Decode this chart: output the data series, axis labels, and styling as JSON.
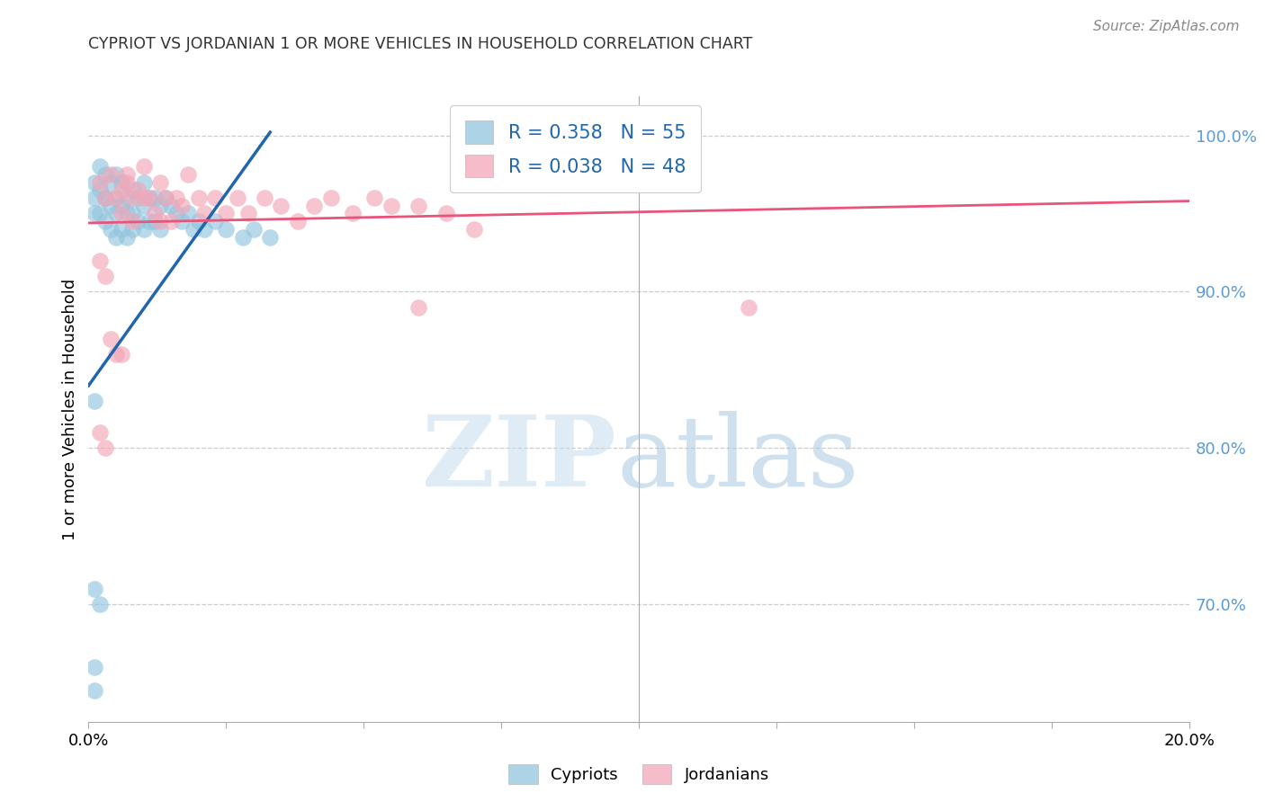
{
  "title": "CYPRIOT VS JORDANIAN 1 OR MORE VEHICLES IN HOUSEHOLD CORRELATION CHART",
  "source": "Source: ZipAtlas.com",
  "ylabel": "1 or more Vehicles in Household",
  "xmin": 0.0,
  "xmax": 0.2,
  "ymin": 0.625,
  "ymax": 1.025,
  "yticks": [
    0.7,
    0.8,
    0.9,
    1.0
  ],
  "ytick_labels": [
    "70.0%",
    "80.0%",
    "90.0%",
    "100.0%"
  ],
  "xticks": [
    0.0,
    0.025,
    0.05,
    0.075,
    0.1,
    0.125,
    0.15,
    0.175,
    0.2
  ],
  "blue_color": "#92c5de",
  "pink_color": "#f4a6b8",
  "blue_line_color": "#2166ac",
  "pink_line_color": "#e8547a",
  "R_blue": 0.358,
  "N_blue": 55,
  "R_pink": 0.038,
  "N_pink": 48,
  "legend_label_blue": "Cypriots",
  "legend_label_pink": "Jordanians",
  "blue_scatter_x": [
    0.001,
    0.001,
    0.002,
    0.002,
    0.002,
    0.003,
    0.003,
    0.003,
    0.004,
    0.004,
    0.004,
    0.005,
    0.005,
    0.005,
    0.005,
    0.006,
    0.006,
    0.006,
    0.007,
    0.007,
    0.007,
    0.008,
    0.008,
    0.008,
    0.009,
    0.009,
    0.01,
    0.01,
    0.01,
    0.011,
    0.011,
    0.012,
    0.012,
    0.013,
    0.013,
    0.014,
    0.015,
    0.016,
    0.017,
    0.018,
    0.019,
    0.02,
    0.021,
    0.023,
    0.025,
    0.028,
    0.03,
    0.033,
    0.001,
    0.001,
    0.001,
    0.002,
    0.003,
    0.001,
    0.001
  ],
  "blue_scatter_y": [
    0.97,
    0.96,
    0.98,
    0.965,
    0.95,
    0.975,
    0.96,
    0.945,
    0.97,
    0.955,
    0.94,
    0.975,
    0.96,
    0.95,
    0.935,
    0.97,
    0.955,
    0.94,
    0.96,
    0.95,
    0.935,
    0.965,
    0.95,
    0.94,
    0.96,
    0.945,
    0.97,
    0.955,
    0.94,
    0.96,
    0.945,
    0.96,
    0.945,
    0.955,
    0.94,
    0.96,
    0.955,
    0.95,
    0.945,
    0.95,
    0.94,
    0.945,
    0.94,
    0.945,
    0.94,
    0.935,
    0.94,
    0.935,
    0.83,
    0.95,
    0.71,
    0.7,
    0.96,
    0.66,
    0.645
  ],
  "pink_scatter_x": [
    0.002,
    0.003,
    0.004,
    0.005,
    0.006,
    0.006,
    0.007,
    0.008,
    0.008,
    0.009,
    0.01,
    0.01,
    0.011,
    0.012,
    0.013,
    0.013,
    0.014,
    0.015,
    0.016,
    0.017,
    0.018,
    0.02,
    0.021,
    0.023,
    0.025,
    0.027,
    0.029,
    0.032,
    0.035,
    0.038,
    0.041,
    0.044,
    0.048,
    0.052,
    0.055,
    0.06,
    0.065,
    0.07,
    0.002,
    0.003,
    0.004,
    0.005,
    0.006,
    0.007,
    0.06,
    0.002,
    0.003,
    0.12
  ],
  "pink_scatter_y": [
    0.97,
    0.96,
    0.975,
    0.96,
    0.965,
    0.95,
    0.975,
    0.96,
    0.945,
    0.965,
    0.98,
    0.96,
    0.96,
    0.95,
    0.97,
    0.945,
    0.96,
    0.945,
    0.96,
    0.955,
    0.975,
    0.96,
    0.95,
    0.96,
    0.95,
    0.96,
    0.95,
    0.96,
    0.955,
    0.945,
    0.955,
    0.96,
    0.95,
    0.96,
    0.955,
    0.955,
    0.95,
    0.94,
    0.92,
    0.91,
    0.87,
    0.86,
    0.86,
    0.97,
    0.89,
    0.81,
    0.8,
    0.89
  ],
  "blue_trend_x": [
    0.0,
    0.033
  ],
  "blue_trend_y": [
    0.84,
    1.002
  ],
  "pink_trend_x": [
    0.0,
    0.2
  ],
  "pink_trend_y": [
    0.944,
    0.958
  ]
}
